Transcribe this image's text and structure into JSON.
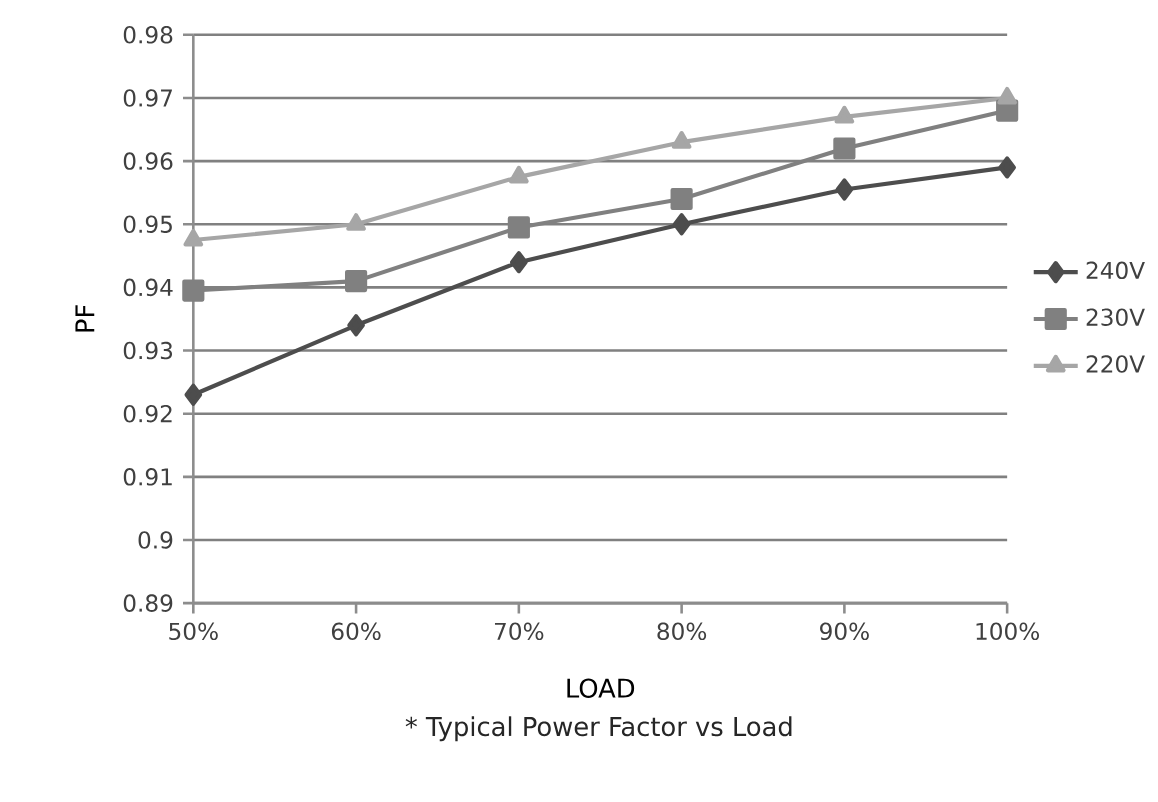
{
  "chart_data": {
    "type": "line",
    "xlabel": "LOAD",
    "ylabel": "PF",
    "categories": [
      "50%",
      "60%",
      "70%",
      "80%",
      "90%",
      "100%"
    ],
    "series": [
      {
        "name": "240V",
        "color": "#4d4d4d",
        "marker": "diamond",
        "values": [
          0.923,
          0.934,
          0.944,
          0.95,
          0.9555,
          0.959
        ]
      },
      {
        "name": "230V",
        "color": "#808080",
        "marker": "square",
        "values": [
          0.9395,
          0.941,
          0.9495,
          0.954,
          0.962,
          0.968
        ]
      },
      {
        "name": "220V",
        "color": "#a6a6a6",
        "marker": "triangle",
        "values": [
          0.9475,
          0.95,
          0.9575,
          0.963,
          0.967,
          0.97
        ]
      }
    ],
    "ylim": [
      0.89,
      0.98
    ],
    "yticks": [
      0.89,
      0.9,
      0.91,
      0.92,
      0.93,
      0.94,
      0.95,
      0.96,
      0.97,
      0.98
    ],
    "grid": "y",
    "legend": "right",
    "annotations": [
      "* Typical Power Factor vs Load"
    ]
  }
}
